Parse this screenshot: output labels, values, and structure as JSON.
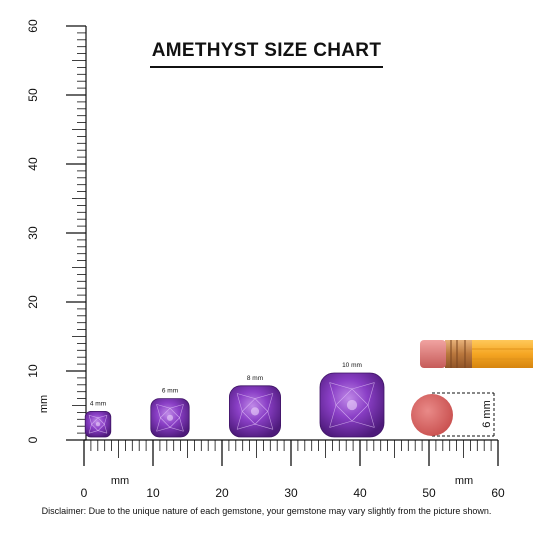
{
  "title": "AMETHYST SIZE CHART",
  "disclaimer": "Disclaimer: Due to the unique nature of each gemstone, your gemstone may vary slightly from the picture shown.",
  "vertical_ruler": {
    "labels": [
      "0",
      "10",
      "20",
      "30",
      "40",
      "50",
      "60"
    ],
    "unit": "mm"
  },
  "horizontal_ruler": {
    "labels": [
      "0",
      "10",
      "20",
      "30",
      "40",
      "50",
      "60"
    ],
    "unit_labels": [
      "mm",
      "mm"
    ]
  },
  "gems": [
    {
      "label": "4 mm",
      "size_mm": 4
    },
    {
      "label": "6 mm",
      "size_mm": 6
    },
    {
      "label": "8 mm",
      "size_mm": 8
    },
    {
      "label": "10 mm",
      "size_mm": 10
    }
  ],
  "eraser": {
    "dimension_label": "6 mm",
    "size_mm": 6
  },
  "colors": {
    "gem": "#8a3fc6",
    "gem_dark": "#4d1a7a",
    "eraser": "#d9605f",
    "pencil": "#f5a623",
    "ferrule": "#c8874a"
  }
}
